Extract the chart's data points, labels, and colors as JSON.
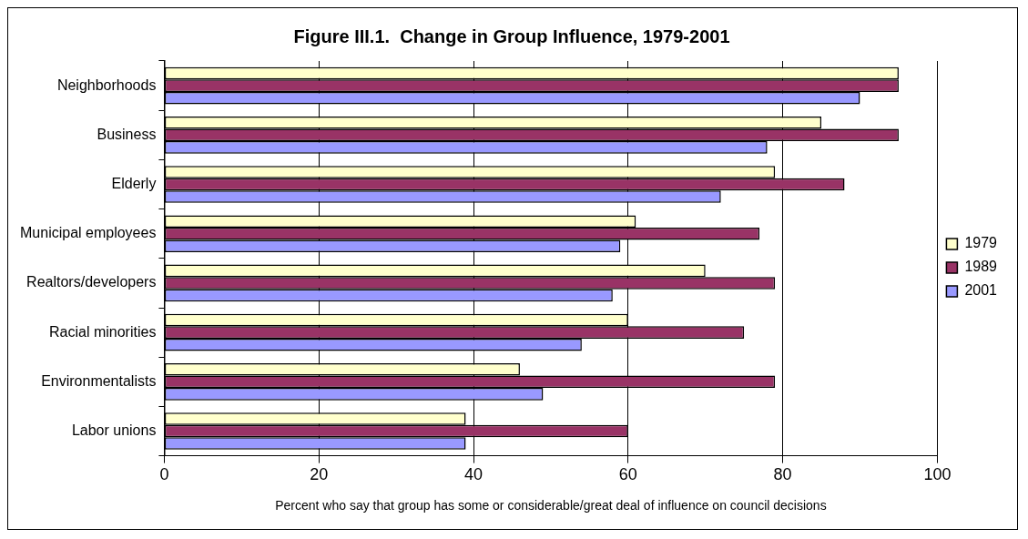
{
  "chart_data": {
    "type": "bar",
    "orientation": "horizontal",
    "title": "Figure III.1.  Change in Group Influence, 1979-2001",
    "xlabel": "Percent who say that group has some or considerable/great deal of influence on council decisions",
    "categories": [
      "Neighborhoods",
      "Business",
      "Elderly",
      "Municipal employees",
      "Realtors/developers",
      "Racial minorities",
      "Environmentalists",
      "Labor unions"
    ],
    "series": [
      {
        "name": "1979",
        "color": "#ffffcc",
        "values": [
          95,
          85,
          79,
          61,
          70,
          60,
          46,
          39
        ]
      },
      {
        "name": "1989",
        "color": "#993366",
        "values": [
          95,
          95,
          88,
          77,
          79,
          75,
          79,
          60
        ]
      },
      {
        "name": "2001",
        "color": "#9999ff",
        "values": [
          90,
          78,
          72,
          59,
          58,
          54,
          49,
          39
        ]
      }
    ],
    "xlim": [
      0,
      100
    ],
    "xticks": [
      0,
      20,
      40,
      60,
      80,
      100
    ],
    "grid": "x",
    "legend": "right"
  }
}
